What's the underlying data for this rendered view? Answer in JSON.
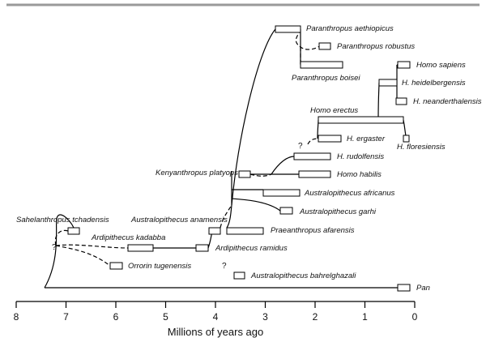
{
  "axis": {
    "title": "Millions of years ago",
    "ticks": [
      "8",
      "7",
      "6",
      "5",
      "4",
      "3",
      "2",
      "1",
      "0"
    ]
  },
  "taxa": [
    {
      "key": "aethiopicus",
      "label": "Paranthropus aethiopicus"
    },
    {
      "key": "robustus",
      "label": "Paranthropus robustus"
    },
    {
      "key": "boisei",
      "label": "Paranthropus boisei"
    },
    {
      "key": "sapiens",
      "label": "Homo sapiens"
    },
    {
      "key": "heidelbergensis",
      "label": "H. heidelbergensis"
    },
    {
      "key": "neanderthalensis",
      "label": "H. neanderthalensis"
    },
    {
      "key": "erectus",
      "label": "Homo erectus"
    },
    {
      "key": "ergaster",
      "label": "H. ergaster"
    },
    {
      "key": "floresiensis",
      "label": "H. floresiensis"
    },
    {
      "key": "rudolfensis",
      "label": "H. rudolfensis"
    },
    {
      "key": "platyops",
      "label": "Kenyanthropus platyops"
    },
    {
      "key": "habilis",
      "label": "Homo habilis"
    },
    {
      "key": "africanus",
      "label": "Australopithecus africanus"
    },
    {
      "key": "garhi",
      "label": "Australopithecus garhi"
    },
    {
      "key": "tchadensis",
      "label": "Sahelanthropus tchadensis"
    },
    {
      "key": "anamensis",
      "label": "Australopithecus anamensis"
    },
    {
      "key": "afarensis",
      "label": "Praeanthropus afarensis"
    },
    {
      "key": "kadabba",
      "label": "Ardipithecus kadabba"
    },
    {
      "key": "ramidus",
      "label": "Ardipithecus ramidus"
    },
    {
      "key": "tugenensis",
      "label": "Orrorin tugenensis"
    },
    {
      "key": "bahrelghazali",
      "label": "Australopithecus bahrelghazali"
    },
    {
      "key": "pan",
      "label": "Pan"
    }
  ],
  "uncertain_marks": [
    "?",
    "?",
    "?"
  ]
}
